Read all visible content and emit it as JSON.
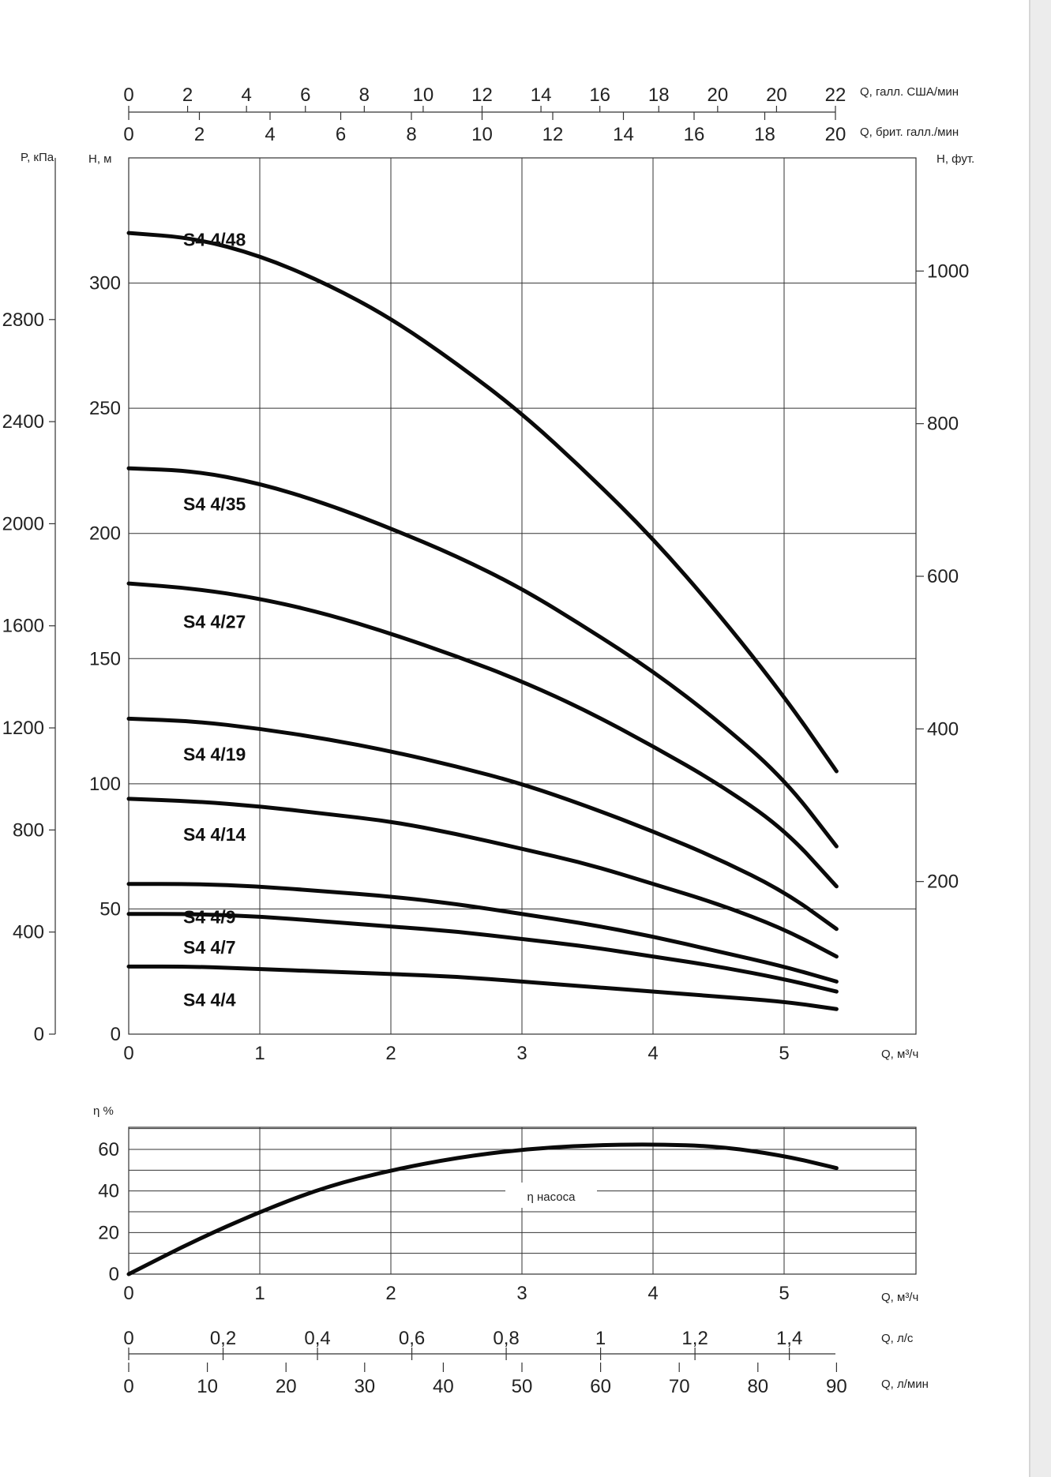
{
  "chart_data": [
    {
      "type": "line",
      "title": "",
      "xlabel": "Q, м³/ч",
      "ylabel": "H, м",
      "xlim": [
        0,
        6
      ],
      "ylim": [
        0,
        350
      ],
      "x_ticks": [
        0,
        1,
        2,
        3,
        4,
        5
      ],
      "y_ticks": [
        0,
        50,
        100,
        150,
        200,
        250,
        300
      ],
      "grid": true,
      "series": [
        {
          "name": "S4 4/48",
          "x": [
            0,
            0.5,
            1,
            1.5,
            2,
            2.5,
            3,
            3.5,
            4,
            4.5,
            5,
            5.4
          ],
          "values": [
            320,
            318,
            311,
            300,
            286,
            268,
            248,
            224,
            198,
            168,
            135,
            105
          ]
        },
        {
          "name": "S4 4/35",
          "x": [
            0,
            0.5,
            1,
            1.5,
            2,
            2.5,
            3,
            3.5,
            4,
            4.5,
            5,
            5.4
          ],
          "values": [
            226,
            225,
            220,
            212,
            202,
            191,
            178,
            162,
            145,
            125,
            102,
            75
          ]
        },
        {
          "name": "S4 4/27",
          "x": [
            0,
            0.5,
            1,
            1.5,
            2,
            2.5,
            3,
            3.5,
            4,
            4.5,
            5,
            5.4
          ],
          "values": [
            180,
            178,
            174,
            168,
            160,
            151,
            141,
            129,
            115,
            100,
            82,
            59
          ]
        },
        {
          "name": "S4 4/19",
          "x": [
            0,
            0.5,
            1,
            1.5,
            2,
            2.5,
            3,
            3.5,
            4,
            4.5,
            5,
            5.4
          ],
          "values": [
            126,
            125,
            122,
            118,
            113,
            107,
            100,
            91,
            81,
            70,
            57,
            42
          ]
        },
        {
          "name": "S4 4/14",
          "x": [
            0,
            0.5,
            1,
            1.5,
            2,
            2.5,
            3,
            3.5,
            4,
            4.5,
            5,
            5.4
          ],
          "values": [
            94,
            93,
            91,
            88,
            85,
            80,
            74,
            68,
            60,
            52,
            42,
            31
          ]
        },
        {
          "name": "S4 4/9",
          "x": [
            0,
            0.5,
            1,
            1.5,
            2,
            2.5,
            3,
            3.5,
            4,
            4.5,
            5,
            5.4
          ],
          "values": [
            60,
            60,
            59,
            57,
            55,
            52,
            48,
            44,
            39,
            33,
            27,
            21
          ]
        },
        {
          "name": "S4 4/7",
          "x": [
            0,
            0.5,
            1,
            1.5,
            2,
            2.5,
            3,
            3.5,
            4,
            4.5,
            5,
            5.4
          ],
          "values": [
            48,
            48,
            47,
            45,
            43,
            41,
            38,
            35,
            31,
            27,
            22,
            17
          ]
        },
        {
          "name": "S4 4/4",
          "x": [
            0,
            0.5,
            1,
            1.5,
            2,
            2.5,
            3,
            3.5,
            4,
            4.5,
            5,
            5.4
          ],
          "values": [
            27,
            27,
            26,
            25,
            24,
            23,
            21,
            19,
            17,
            15,
            13,
            10
          ]
        }
      ],
      "left_axis": {
        "label": "P, кПа",
        "ticks": [
          "0",
          "400",
          "800",
          "1200",
          "1600",
          "2000",
          "2400",
          "2800"
        ]
      },
      "right_axis": {
        "label": "H, фут.",
        "ticks": [
          "200",
          "400",
          "600",
          "800",
          "1000"
        ]
      },
      "top_axis_us": {
        "label": "Q, галл. США/мин",
        "ticks": [
          "0",
          "2",
          "4",
          "6",
          "8",
          "10",
          "12",
          "14",
          "16",
          "18",
          "20",
          "20",
          "22"
        ]
      },
      "top_axis_uk": {
        "label": "Q, брит. галл./мин",
        "ticks": [
          "0",
          "2",
          "4",
          "6",
          "8",
          "10",
          "12",
          "14",
          "16",
          "18",
          "20"
        ]
      }
    },
    {
      "type": "line",
      "title": "",
      "xlabel": "Q, м³/ч",
      "ylabel": "η %",
      "xlim": [
        0,
        6
      ],
      "ylim": [
        0,
        70
      ],
      "x_ticks": [
        0,
        1,
        2,
        3,
        4,
        5
      ],
      "y_ticks": [
        0,
        20,
        40,
        60
      ],
      "grid": true,
      "annotation": "η насоса",
      "series": [
        {
          "name": "η насоса",
          "x": [
            0,
            0.5,
            1,
            1.5,
            2,
            2.5,
            3,
            3.5,
            4,
            4.5,
            5,
            5.4
          ],
          "values": [
            0,
            16,
            30,
            42,
            50,
            56,
            60,
            62,
            62.5,
            61.5,
            57,
            51
          ]
        }
      ],
      "axis_ls": {
        "label": "Q, л/с",
        "ticks": [
          "0",
          "0,2",
          "0,4",
          "0,6",
          "0,8",
          "1",
          "1,2",
          "1,4"
        ]
      },
      "axis_lmin": {
        "label": "Q, л/мин",
        "ticks": [
          "0",
          "10",
          "20",
          "30",
          "40",
          "50",
          "60",
          "70",
          "80",
          "90"
        ]
      }
    }
  ]
}
